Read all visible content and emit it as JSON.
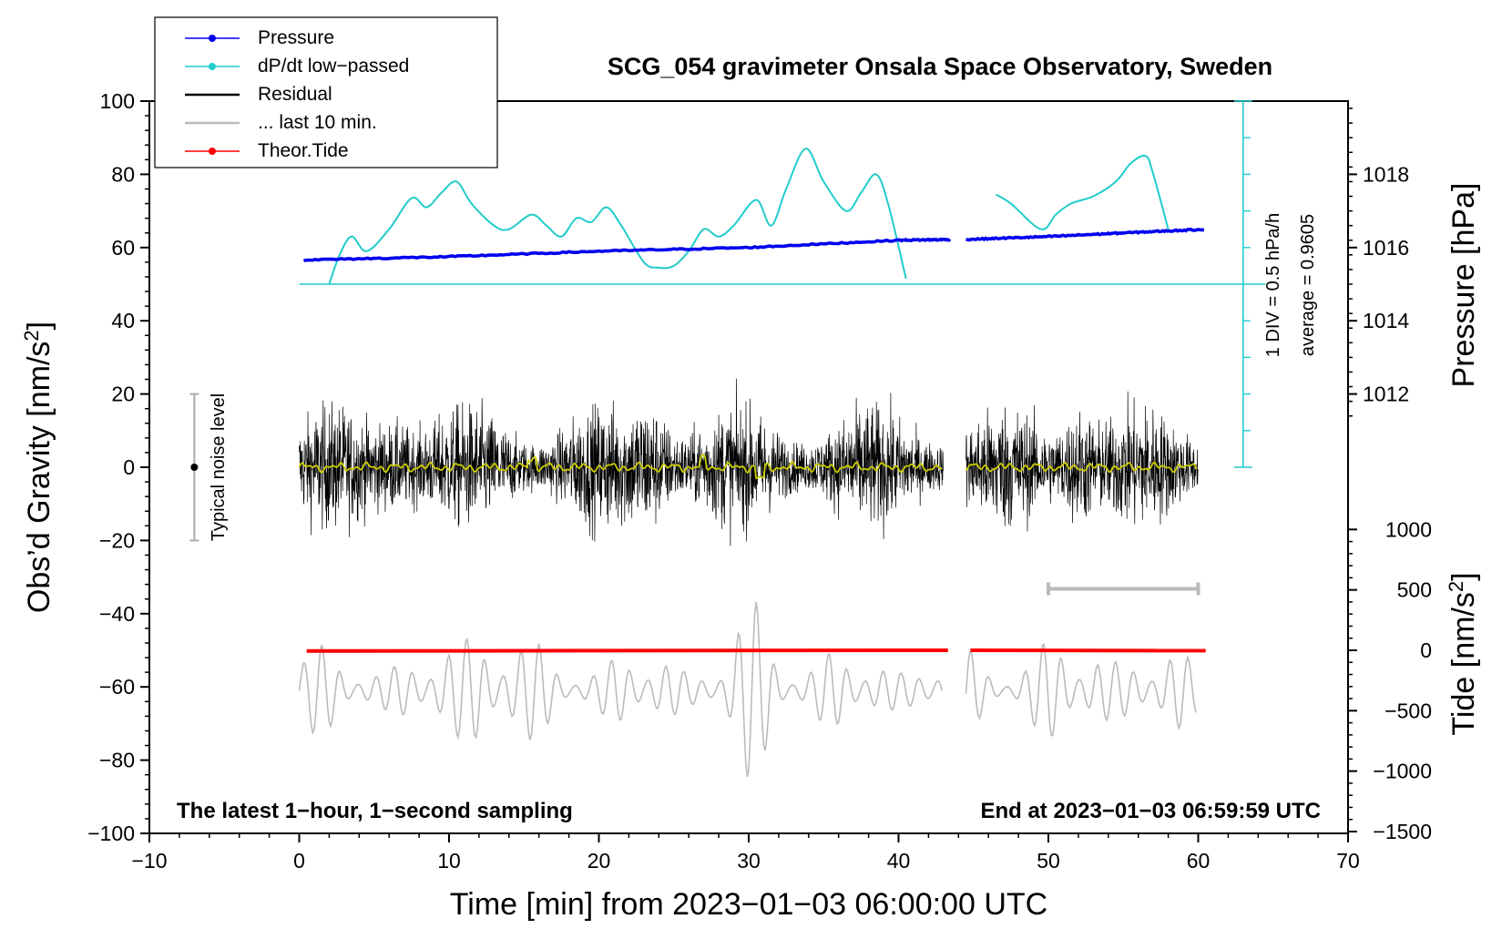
{
  "chart_data": {
    "type": "line",
    "title": "SCG_054 gravimeter Onsala Space Observatory, Sweden",
    "xlabel": "Time [min] from 2023−01−03 06:00:00 UTC",
    "ylabel_left": "Obs’d Gravity [nm/s²]",
    "ylabel_left_main": "Obs’d Gravity [nm/s",
    "ylabel_left_sup": "2",
    "ylabel_left_end": "]",
    "ylabel_right_top": "Pressure [hPa]",
    "ylabel_right_bottom": "Tide [nm/s²]",
    "ylabel_right_bottom_main": "Tide [nm/s",
    "ylabel_right_bottom_sup": "2",
    "ylabel_right_bottom_end": "]",
    "xlim": [
      -10,
      70
    ],
    "ylim": [
      -100,
      100
    ],
    "x_ticks": [
      -10,
      0,
      10,
      20,
      30,
      40,
      50,
      60,
      70
    ],
    "x_tick_labels": [
      "−10",
      "0",
      "10",
      "20",
      "30",
      "40",
      "50",
      "60",
      "70"
    ],
    "y_ticks": [
      100,
      80,
      60,
      40,
      20,
      0,
      -20,
      -40,
      -60,
      -80,
      -100
    ],
    "y_tick_labels": [
      "100",
      "80",
      "60",
      "40",
      "20",
      "0",
      "−20",
      "−40",
      "−60",
      "−80",
      "−100"
    ],
    "pressure_axis": {
      "ticks": [
        1018,
        1016,
        1014,
        1012
      ],
      "tick_labels": [
        "1018",
        "1016",
        "1014",
        "1012"
      ],
      "gravity_equiv": [
        80,
        60,
        40,
        20
      ],
      "ref_line_gravity": 50
    },
    "tide_axis": {
      "ticks": [
        1000,
        500,
        0,
        -500,
        -1000,
        -1500
      ],
      "tick_labels": [
        "1000",
        "500",
        "0",
        "−500",
        "−1000",
        "−1500"
      ],
      "gravity_equiv": [
        -17,
        -33.5,
        -50,
        -66.5,
        -83,
        -99.5
      ]
    },
    "series": [
      {
        "name": "Pressure",
        "color": "#0000ee",
        "style": "line-with-dots",
        "segments": [
          [
            [
              0.3,
              56.6
            ],
            [
              10,
              57.5
            ],
            [
              20,
              59
            ],
            [
              30,
              60
            ],
            [
              40,
              62
            ],
            [
              43.5,
              62.2
            ]
          ],
          [
            [
              44.5,
              62.2
            ],
            [
              50,
              63
            ],
            [
              55,
              64
            ],
            [
              60.5,
              65
            ]
          ]
        ]
      },
      {
        "name": "dP/dt low−passed",
        "color": "#22cccc",
        "style": "line-with-dots",
        "segments": [
          [
            [
              2,
              50
            ],
            [
              2.7,
              58
            ],
            [
              3.5,
              63
            ],
            [
              4.5,
              59
            ],
            [
              6,
              65
            ],
            [
              7.5,
              73.5
            ],
            [
              8.5,
              71
            ],
            [
              9.5,
              75
            ],
            [
              10.5,
              78
            ],
            [
              11.5,
              72
            ],
            [
              13,
              66
            ],
            [
              14,
              65
            ],
            [
              15.5,
              69
            ],
            [
              16.5,
              66
            ],
            [
              17.5,
              63
            ],
            [
              18.5,
              68
            ],
            [
              19.5,
              67
            ],
            [
              20.5,
              71
            ],
            [
              21.5,
              66
            ],
            [
              23,
              56
            ],
            [
              24,
              54.5
            ],
            [
              25,
              55
            ],
            [
              26,
              59
            ],
            [
              27,
              65
            ],
            [
              28,
              63
            ],
            [
              29,
              66
            ],
            [
              30.5,
              73
            ],
            [
              31.5,
              66
            ],
            [
              32.5,
              76
            ],
            [
              33.8,
              87
            ],
            [
              35,
              78
            ],
            [
              36.5,
              70
            ],
            [
              37.5,
              75
            ],
            [
              38.5,
              80
            ],
            [
              39.3,
              72
            ],
            [
              40.5,
              51.5
            ]
          ],
          [
            [
              46.5,
              74.5
            ],
            [
              47.5,
              72
            ],
            [
              49.5,
              65
            ],
            [
              50.5,
              69
            ],
            [
              51.5,
              72
            ],
            [
              53,
              74
            ],
            [
              54.5,
              78
            ],
            [
              55.5,
              83
            ],
            [
              56.5,
              85
            ],
            [
              57,
              80
            ],
            [
              58,
              65
            ]
          ]
        ]
      },
      {
        "name": "Residual",
        "color": "#000000",
        "style": "line",
        "segments": [
          [
            0,
            43
          ],
          [
            44.5,
            60
          ]
        ],
        "amplitude": 42
      },
      {
        "name": "... last 10 min.",
        "color": "#bbbbbb",
        "style": "line",
        "segments": [
          [
            0,
            43
          ],
          [
            44.5,
            60
          ]
        ]
      },
      {
        "name": "Theor.Tide",
        "color": "#ff0000",
        "style": "line-with-dots",
        "segments": [
          [
            [
              0.5,
              -50.2
            ],
            [
              20,
              -50.1
            ],
            [
              40,
              -50.0
            ],
            [
              43.3,
              -50.0
            ]
          ],
          [
            [
              44.8,
              -50.0
            ],
            [
              60.5,
              -50.1
            ]
          ]
        ]
      }
    ],
    "residual_lowpass_color": "#cccc00",
    "legend": {
      "position": "top-left",
      "entries": [
        {
          "label": "Pressure",
          "color": "#0000ee",
          "marker": true
        },
        {
          "label": "dP/dt low−passed",
          "color": "#22cccc",
          "marker": true
        },
        {
          "label": "Residual",
          "color": "#000000",
          "marker": false
        },
        {
          "label": "... last 10 min.",
          "color": "#bbbbbb",
          "marker": false
        },
        {
          "label": "Theor.Tide",
          "color": "#ff0000",
          "marker": true
        }
      ]
    },
    "annotations": {
      "noise_label": "Typical noise level",
      "noise_range": [
        -20,
        20
      ],
      "noise_x": -7,
      "div_label": "1 DIV = 0.5 hPa/h",
      "average_label": "average = 0.9605",
      "bottom_left": "The latest 1−hour, 1−second sampling",
      "bottom_right": "End at 2023−01−03 06:59:59 UTC",
      "last10_bar": [
        50,
        60
      ],
      "last10_bar_y": -33.2
    }
  }
}
